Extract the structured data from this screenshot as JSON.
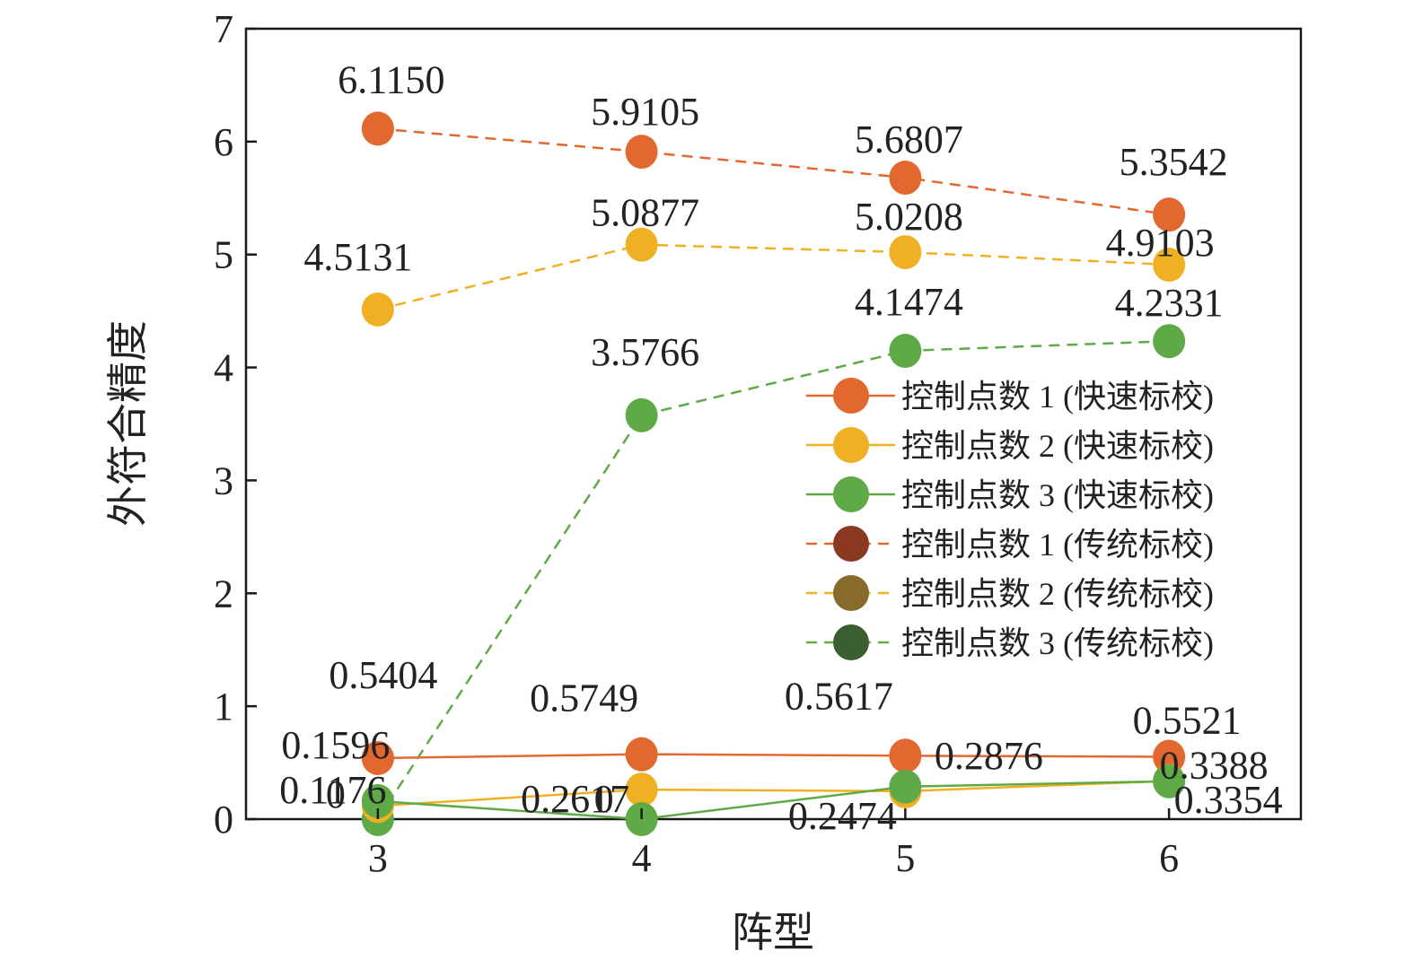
{
  "chart_data": {
    "type": "line",
    "title": "",
    "xlabel": "阵型",
    "ylabel": "外符合精度",
    "categories": [
      "3",
      "4",
      "5",
      "6"
    ],
    "xlim": [
      2.5,
      6.5
    ],
    "ylim": [
      0,
      7
    ],
    "yticks": [
      "0",
      "1",
      "2",
      "3",
      "4",
      "5",
      "6",
      "7"
    ],
    "grid": false,
    "legend_position": "center-right",
    "series": [
      {
        "name": "控制点数  1 (快速标校)",
        "color": "#E2682F",
        "marker_color": "#E2682F",
        "line_style": "solid",
        "values": [
          0.5404,
          0.5749,
          0.5617,
          0.5521
        ],
        "labels": [
          "0.5404",
          "0.5749",
          "0.5617",
          "0.5521"
        ]
      },
      {
        "name": "控制点数  2 (快速标校)",
        "color": "#F0B024",
        "marker_color": "#F0B024",
        "line_style": "solid",
        "values": [
          0.1176,
          0.2617,
          0.2474,
          0.3388
        ],
        "labels": [
          "0.1176",
          "0.2617",
          "0.2474",
          "0.3388"
        ]
      },
      {
        "name": "控制点数  3 (快速标校)",
        "color": "#5FAA46",
        "marker_color": "#5FAA46",
        "line_style": "solid",
        "values": [
          0.1596,
          0,
          0.2876,
          0.3354
        ],
        "labels": [
          "0.1596",
          "0",
          "0.2876",
          "0.3354"
        ]
      },
      {
        "name": "控制点数  1 (传统标校)",
        "color": "#E2682F",
        "marker_color": "#E2682F",
        "legend_marker_color": "#8B3A22",
        "line_style": "dashed",
        "values": [
          6.115,
          5.9105,
          5.6807,
          5.3542
        ],
        "labels": [
          "6.1150",
          "5.9105",
          "5.6807",
          "5.3542"
        ]
      },
      {
        "name": "控制点数  2 (传统标校)",
        "color": "#F0B024",
        "marker_color": "#F0B024",
        "legend_marker_color": "#866B2A",
        "line_style": "dashed",
        "values": [
          4.5131,
          5.0877,
          5.0208,
          4.9103
        ],
        "labels": [
          "4.5131",
          "5.0877",
          "5.0208",
          "4.9103"
        ]
      },
      {
        "name": "控制点数  3 (传统标校)",
        "color": "#5FAA46",
        "marker_color": "#5FAA46",
        "legend_marker_color": "#3B5E2E",
        "line_style": "dashed",
        "values": [
          0,
          3.5766,
          4.1474,
          4.2331
        ],
        "labels": [
          "0",
          "3.5766",
          "4.1474",
          "4.2331"
        ]
      }
    ]
  }
}
